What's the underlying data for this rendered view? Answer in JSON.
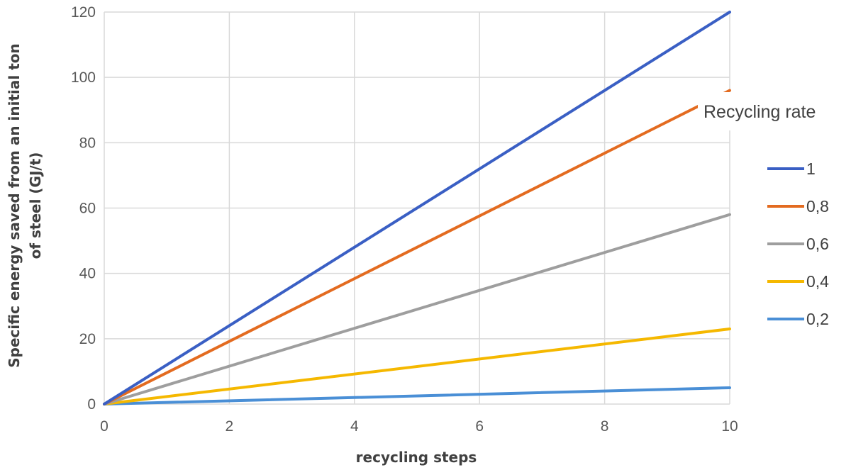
{
  "chart_data": {
    "type": "line",
    "title": "",
    "xlabel": "recycling steps",
    "ylabel_lines": [
      "Specific energy saved from an initial ton",
      "of steel (GJ/t)"
    ],
    "xlim": [
      0,
      10
    ],
    "ylim": [
      0,
      120
    ],
    "xticks": [
      0,
      2,
      4,
      6,
      8,
      10
    ],
    "yticks": [
      0,
      20,
      40,
      60,
      80,
      100,
      120
    ],
    "grid": true,
    "legend": {
      "title": "Recycling rate",
      "placement": "right"
    },
    "series": [
      {
        "name": "1",
        "color": "#3a5fc4",
        "x": [
          0,
          10
        ],
        "y": [
          0,
          120
        ]
      },
      {
        "name": "0,8",
        "color": "#e36b20",
        "x": [
          0,
          10
        ],
        "y": [
          0,
          96
        ]
      },
      {
        "name": "0,6",
        "color": "#9e9e9e",
        "x": [
          0,
          10
        ],
        "y": [
          0,
          58
        ]
      },
      {
        "name": "0,4",
        "color": "#f5b800",
        "x": [
          0,
          10
        ],
        "y": [
          0,
          23
        ]
      },
      {
        "name": "0,2",
        "color": "#4a8fd6",
        "x": [
          0,
          10
        ],
        "y": [
          0,
          5
        ]
      }
    ]
  }
}
